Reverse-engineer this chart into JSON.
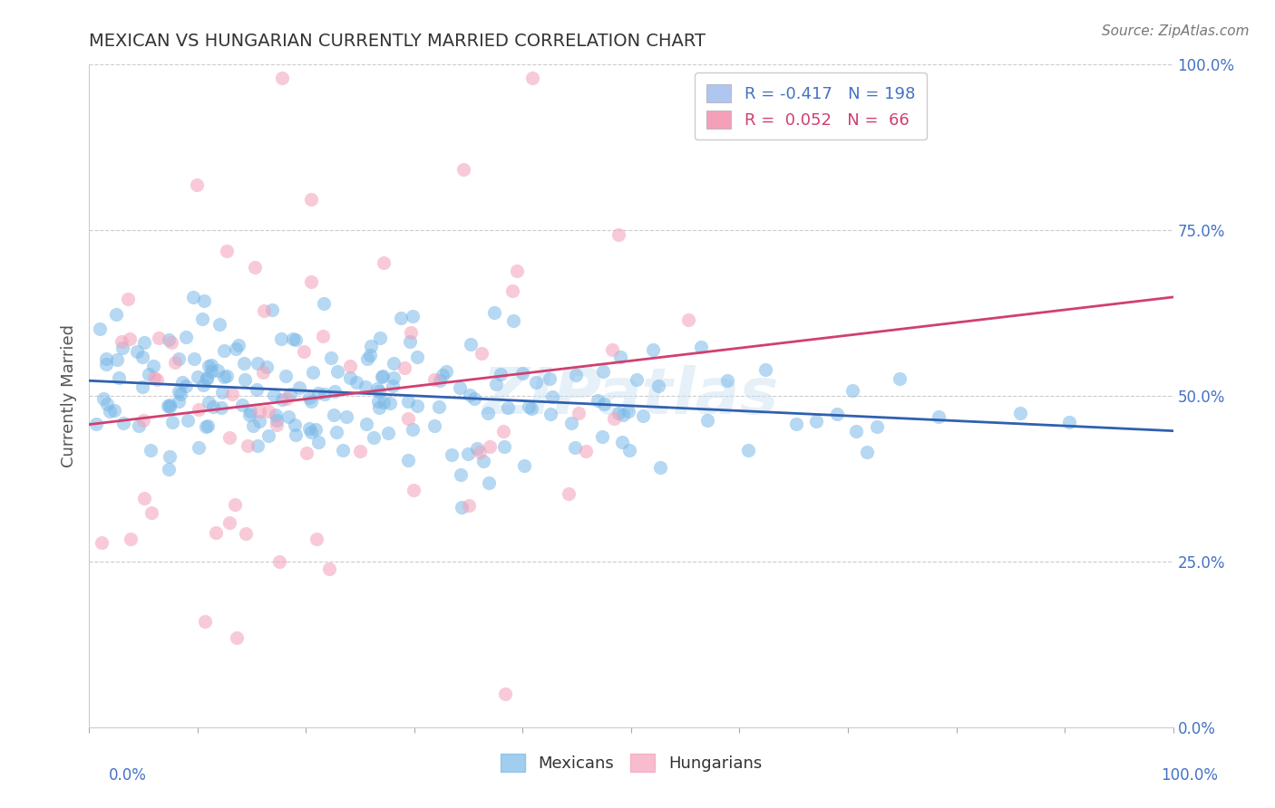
{
  "title": "MEXICAN VS HUNGARIAN CURRENTLY MARRIED CORRELATION CHART",
  "source": "Source: ZipAtlas.com",
  "ylabel": "Currently Married",
  "right_yticklabels": [
    "0.0%",
    "25.0%",
    "50.0%",
    "75.0%",
    "100.0%"
  ],
  "right_ytick_positions": [
    0.0,
    0.25,
    0.5,
    0.75,
    1.0
  ],
  "mexicans_color": "#7ab8e8",
  "hungarians_color": "#f4a0b8",
  "trend_mexican_color": "#3060b0",
  "trend_hungarian_color": "#d04070",
  "watermark": "ZIPatlas",
  "seed": 42,
  "n_mexicans": 198,
  "n_hungarians": 66,
  "mexican_R": -0.417,
  "hungarian_R": 0.052,
  "background_color": "#ffffff",
  "grid_color": "#cccccc",
  "title_color": "#333333",
  "axis_label_color": "#555555",
  "right_axis_color": "#4472c4",
  "legend1_label0": "R = -0.417   N = 198",
  "legend1_label1": "R =  0.052   N =  66",
  "legend1_color0": "#4472c4",
  "legend1_color1": "#d04070",
  "legend1_patch_color0": "#aec6f0",
  "legend1_patch_color1": "#f4a0b8",
  "bottom_legend_label0": "Mexicans",
  "bottom_legend_label1": "Hungarians"
}
